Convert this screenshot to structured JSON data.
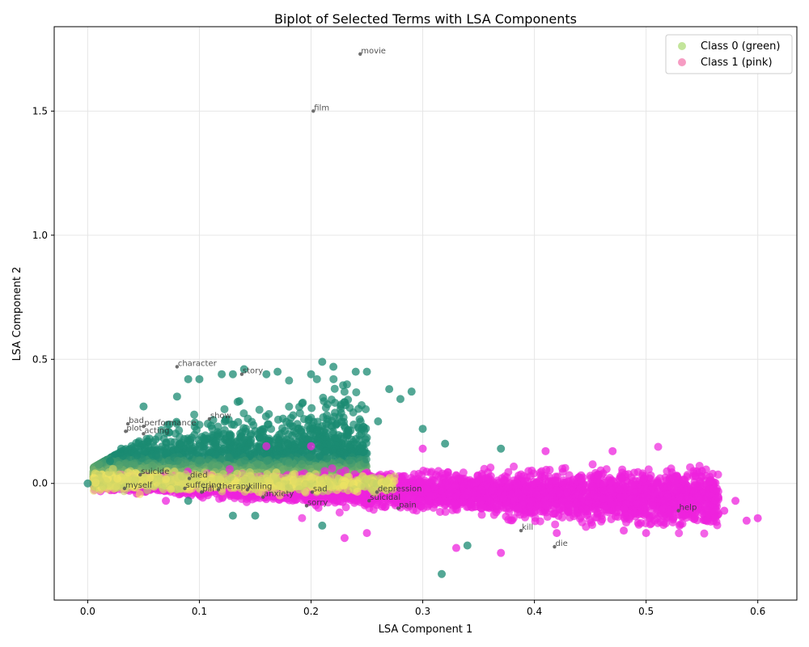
{
  "chart_data": {
    "type": "scatter",
    "title": "Biplot of Selected Terms with LSA Components",
    "xlabel": "LSA Component 1",
    "ylabel": "LSA Component 2",
    "xlim": [
      -0.03,
      0.635
    ],
    "ylim": [
      -0.47,
      1.84
    ],
    "xticks": [
      0.0,
      0.1,
      0.2,
      0.3,
      0.4,
      0.5,
      0.6
    ],
    "xtick_labels": [
      "0.0",
      "0.1",
      "0.2",
      "0.3",
      "0.4",
      "0.5",
      "0.6"
    ],
    "yticks": [
      0.0,
      0.5,
      1.0,
      1.5
    ],
    "ytick_labels": [
      "0.0",
      "0.5",
      "1.0",
      "1.5"
    ],
    "grid": true,
    "legend_position": "top-right",
    "series": [
      {
        "name": "Class 0 (green)",
        "legend_color": "#b8e08a",
        "color_low": "#f5e663",
        "color_high": "#1a8a72",
        "points": [
          [
            0.0,
            0.0
          ],
          [
            0.05,
            0.31
          ],
          [
            0.08,
            0.35
          ],
          [
            0.09,
            0.42
          ],
          [
            0.1,
            0.42
          ],
          [
            0.12,
            0.44
          ],
          [
            0.13,
            0.44
          ],
          [
            0.14,
            0.46
          ],
          [
            0.16,
            0.44
          ],
          [
            0.17,
            0.45
          ],
          [
            0.2,
            0.44
          ],
          [
            0.21,
            0.49
          ],
          [
            0.22,
            0.47
          ],
          [
            0.24,
            0.45
          ],
          [
            0.25,
            0.45
          ],
          [
            0.27,
            0.38
          ],
          [
            0.28,
            0.34
          ],
          [
            0.29,
            0.37
          ],
          [
            0.26,
            0.25
          ],
          [
            0.3,
            0.22
          ],
          [
            0.32,
            0.16
          ],
          [
            0.37,
            0.14
          ],
          [
            0.03,
            0.14
          ],
          [
            0.02,
            0.09
          ],
          [
            0.09,
            -0.07
          ],
          [
            0.13,
            -0.13
          ],
          [
            0.15,
            -0.13
          ],
          [
            0.21,
            -0.17
          ],
          [
            0.34,
            -0.25
          ],
          [
            0.317,
            -0.365
          ]
        ]
      },
      {
        "name": "Class 1 (pink)",
        "legend_color": "#f58bb8",
        "color": "#ee22dd",
        "points": [
          [
            0.6,
            -0.14
          ],
          [
            0.59,
            -0.15
          ],
          [
            0.58,
            -0.07
          ],
          [
            0.57,
            -0.11
          ],
          [
            0.55,
            0.05
          ],
          [
            0.55,
            -0.12
          ],
          [
            0.53,
            -0.17
          ],
          [
            0.5,
            -0.2
          ],
          [
            0.48,
            -0.19
          ],
          [
            0.47,
            0.13
          ],
          [
            0.42,
            -0.2
          ],
          [
            0.41,
            0.13
          ],
          [
            0.37,
            -0.28
          ],
          [
            0.33,
            -0.26
          ],
          [
            0.3,
            0.14
          ],
          [
            0.16,
            0.15
          ],
          [
            0.2,
            0.15
          ],
          [
            0.25,
            -0.2
          ],
          [
            0.23,
            -0.22
          ],
          [
            0.07,
            -0.07
          ]
        ]
      }
    ],
    "terms": [
      {
        "term": "movie",
        "x": 0.244,
        "y": 1.73
      },
      {
        "term": "film",
        "x": 0.202,
        "y": 1.5
      },
      {
        "term": "character",
        "x": 0.08,
        "y": 0.47
      },
      {
        "term": "story",
        "x": 0.138,
        "y": 0.44
      },
      {
        "term": "show",
        "x": 0.109,
        "y": 0.26
      },
      {
        "term": "bad",
        "x": 0.036,
        "y": 0.24
      },
      {
        "term": "performance",
        "x": 0.05,
        "y": 0.23
      },
      {
        "term": "plot",
        "x": 0.034,
        "y": 0.21
      },
      {
        "term": "acting",
        "x": 0.05,
        "y": 0.2
      },
      {
        "term": "suicide",
        "x": 0.047,
        "y": 0.035
      },
      {
        "term": "died",
        "x": 0.091,
        "y": 0.02
      },
      {
        "term": "myself",
        "x": 0.033,
        "y": -0.02
      },
      {
        "term": "suffering",
        "x": 0.087,
        "y": -0.02
      },
      {
        "term": "pill",
        "x": 0.102,
        "y": -0.035
      },
      {
        "term": "therapy",
        "x": 0.117,
        "y": -0.025
      },
      {
        "term": "killing",
        "x": 0.143,
        "y": -0.025
      },
      {
        "term": "anxiety",
        "x": 0.157,
        "y": -0.055
      },
      {
        "term": "sad",
        "x": 0.201,
        "y": -0.035
      },
      {
        "term": "sorry",
        "x": 0.196,
        "y": -0.09
      },
      {
        "term": "depression",
        "x": 0.259,
        "y": -0.035
      },
      {
        "term": "suicidal",
        "x": 0.252,
        "y": -0.07
      },
      {
        "term": "pain",
        "x": 0.278,
        "y": -0.1
      },
      {
        "term": "help",
        "x": 0.529,
        "y": -0.11
      },
      {
        "term": "kill",
        "x": 0.388,
        "y": -0.19
      },
      {
        "term": "die",
        "x": 0.418,
        "y": -0.255
      }
    ]
  }
}
